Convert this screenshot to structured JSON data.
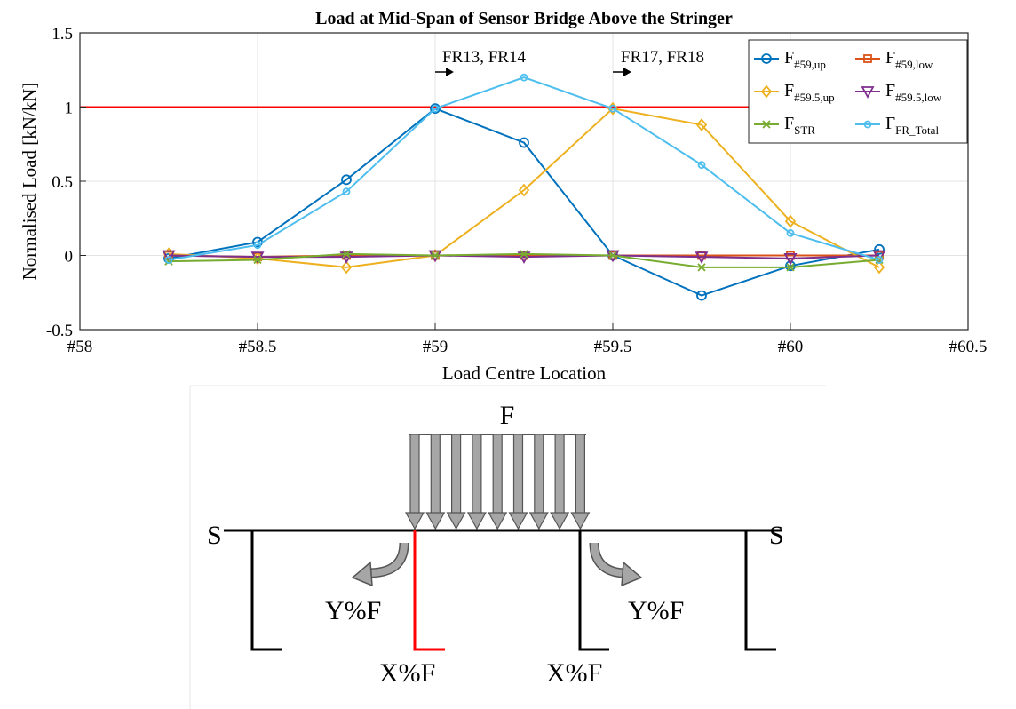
{
  "chart_data": {
    "type": "line",
    "title": "Load at Mid-Span of Sensor Bridge Above the Stringer",
    "xlabel": "Load Centre Location",
    "ylabel": "Normalised Load [kN/kN]",
    "xlim": [
      58,
      60.5
    ],
    "ylim": [
      -0.5,
      1.5
    ],
    "xticks": [
      58,
      58.5,
      59,
      59.5,
      60,
      60.5
    ],
    "xtick_labels": [
      "#58",
      "#58.5",
      "#59",
      "#59.5",
      "#60",
      "#60.5"
    ],
    "yticks": [
      -0.5,
      0,
      0.5,
      1,
      1.5
    ],
    "ytick_labels": [
      "-0.5",
      "0",
      "0.5",
      "1",
      "1.5"
    ],
    "grid": true,
    "legend_position": "top-right",
    "x": [
      58.25,
      58.5,
      58.75,
      59,
      59.25,
      59.5,
      59.75,
      60,
      60.25
    ],
    "series": [
      {
        "name": "F",
        "sub": "#59,up",
        "color": "#0072bd",
        "marker": "circle",
        "values": [
          -0.02,
          0.09,
          0.51,
          0.99,
          0.76,
          0.0,
          -0.27,
          -0.07,
          0.04
        ]
      },
      {
        "name": "F",
        "sub": "#59,low",
        "color": "#d95319",
        "marker": "square",
        "values": [
          0.0,
          -0.01,
          0.0,
          0.0,
          0.0,
          0.0,
          0.0,
          0.0,
          0.0
        ]
      },
      {
        "name": "F",
        "sub": "#59.5,up",
        "color": "#edb120",
        "marker": "diamond",
        "values": [
          0.01,
          -0.02,
          -0.08,
          0.0,
          0.44,
          0.99,
          0.88,
          0.23,
          -0.08
        ]
      },
      {
        "name": "F",
        "sub": "#59.5,low",
        "color": "#7e2f8e",
        "marker": "triangle-down",
        "values": [
          0.0,
          -0.01,
          -0.01,
          0.0,
          -0.01,
          0.0,
          -0.01,
          -0.02,
          0.0
        ]
      },
      {
        "name": "F",
        "sub": "STR",
        "color": "#77ac30",
        "marker": "x",
        "values": [
          -0.04,
          -0.03,
          0.01,
          0.0,
          0.01,
          0.0,
          -0.08,
          -0.08,
          -0.03
        ]
      },
      {
        "name": "F",
        "sub": "FR_Total",
        "color": "#4dbeee",
        "marker": "circle-small",
        "values": [
          -0.03,
          0.07,
          0.43,
          0.99,
          1.2,
          0.99,
          0.61,
          0.15,
          -0.03
        ]
      }
    ],
    "reference_line": {
      "y": 1,
      "color": "#ff0000"
    },
    "annotations": [
      {
        "text": "FR13, FR14",
        "x": 59.0
      },
      {
        "text": "FR17, FR18",
        "x": 59.5
      }
    ]
  },
  "diagram": {
    "load_label": "F",
    "support_left_label": "S",
    "support_right_label": "S",
    "y_left_label": "Y%F",
    "y_right_label": "Y%F",
    "x_left_label": "X%F",
    "x_right_label": "X%F",
    "colors": {
      "arrow_fill": "#a6a6a6",
      "highlight": "#ff0000",
      "line": "#000000"
    }
  }
}
